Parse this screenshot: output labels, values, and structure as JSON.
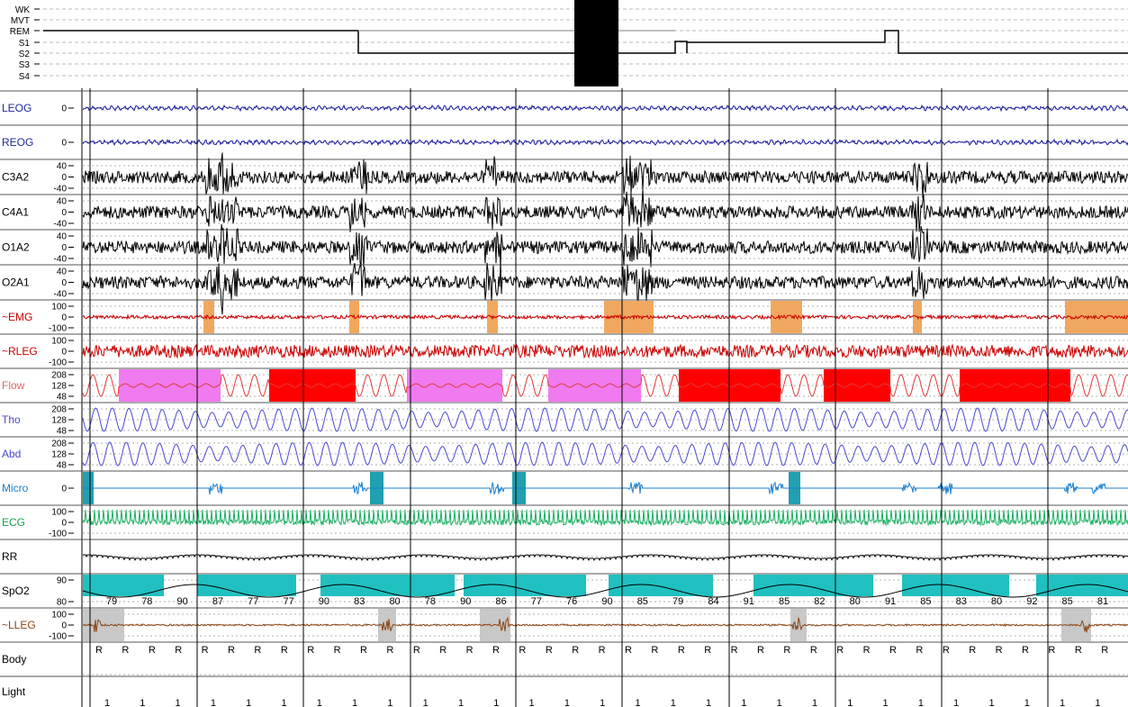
{
  "hypnogram": {
    "stages": [
      "WK",
      "MVT",
      "REM",
      "S1",
      "S2",
      "S3",
      "S4"
    ]
  },
  "channels": [
    {
      "key": "leog",
      "label": "LEOG",
      "label_color": "#1f2a9a",
      "trace_color": "#1a1aa0",
      "ticks": [
        "0"
      ]
    },
    {
      "key": "reog",
      "label": "REOG",
      "label_color": "#1f2a9a",
      "trace_color": "#1a1aa0",
      "ticks": [
        "0"
      ]
    },
    {
      "key": "c3a2",
      "label": "C3A2",
      "label_color": "#000000",
      "trace_color": "#000000",
      "ticks": [
        "40",
        "0",
        "-40"
      ]
    },
    {
      "key": "c4a1",
      "label": "C4A1",
      "label_color": "#000000",
      "trace_color": "#000000",
      "ticks": [
        "40",
        "0",
        "-40"
      ]
    },
    {
      "key": "o1a2",
      "label": "O1A2",
      "label_color": "#000000",
      "trace_color": "#000000",
      "ticks": [
        "40",
        "0",
        "-40"
      ]
    },
    {
      "key": "o2a1",
      "label": "O2A1",
      "label_color": "#000000",
      "trace_color": "#000000",
      "ticks": [
        "40",
        "0",
        "-40"
      ]
    },
    {
      "key": "emg",
      "label": "~EMG",
      "label_color": "#cc0000",
      "trace_color": "#cc0000",
      "ticks": [
        "100",
        "0",
        "-100"
      ]
    },
    {
      "key": "rleg",
      "label": "~RLEG",
      "label_color": "#cc0000",
      "trace_color": "#cc0000",
      "ticks": [
        "100",
        "0",
        "-100"
      ]
    },
    {
      "key": "flow",
      "label": "Flow",
      "label_color": "#e06666",
      "trace_color": "#e03a3a",
      "ticks": [
        "208",
        "128",
        "48"
      ]
    },
    {
      "key": "tho",
      "label": "Tho",
      "label_color": "#4a4ad0",
      "trace_color": "#4a4ad0",
      "ticks": [
        "208",
        "128",
        "48"
      ]
    },
    {
      "key": "abd",
      "label": "Abd",
      "label_color": "#4a4ad0",
      "trace_color": "#4a4ad0",
      "ticks": [
        "208",
        "128",
        "48"
      ]
    },
    {
      "key": "micro",
      "label": "Micro",
      "label_color": "#1a7fd0",
      "trace_color": "#1a7fd0",
      "ticks": [
        "0"
      ]
    },
    {
      "key": "ecg",
      "label": "ECG",
      "label_color": "#16a34a",
      "trace_color": "#16b060",
      "ticks": [
        "100",
        "0",
        "-100"
      ]
    },
    {
      "key": "rr",
      "label": "RR",
      "label_color": "#000000",
      "trace_color": "#000000",
      "ticks": []
    },
    {
      "key": "spo2",
      "label": "SpO2",
      "label_color": "#000000",
      "trace_color": "#000000",
      "ticks": [
        "90",
        "80"
      ]
    },
    {
      "key": "lleg",
      "label": "~LLEG",
      "label_color": "#8b4513",
      "trace_color": "#8b4513",
      "ticks": [
        "100",
        "0",
        "-100"
      ]
    },
    {
      "key": "body",
      "label": "Body",
      "label_color": "#000000",
      "trace_color": "#000000",
      "ticks": []
    },
    {
      "key": "light",
      "label": "Light",
      "label_color": "#000000",
      "trace_color": "#000000",
      "ticks": []
    }
  ],
  "spo2_labels": [
    "79",
    "78",
    "90",
    "87",
    "77",
    "77",
    "90",
    "83",
    "80",
    "78",
    "90",
    "86",
    "77",
    "76",
    "90",
    "85",
    "79",
    "84",
    "91",
    "85",
    "82",
    "80",
    "91",
    "85",
    "83",
    "80",
    "92",
    "85",
    "81"
  ],
  "body_marker": "R",
  "light_marker": "1",
  "colors": {
    "emg_event": "#f0a860",
    "flow_hypopnea": "#f07af0",
    "flow_apnea": "#ff0000",
    "micro_event": "#20a0b0",
    "spo2_event": "#20c0c0",
    "lleg_event": "#c8c8c8",
    "artifact": "#000000"
  }
}
